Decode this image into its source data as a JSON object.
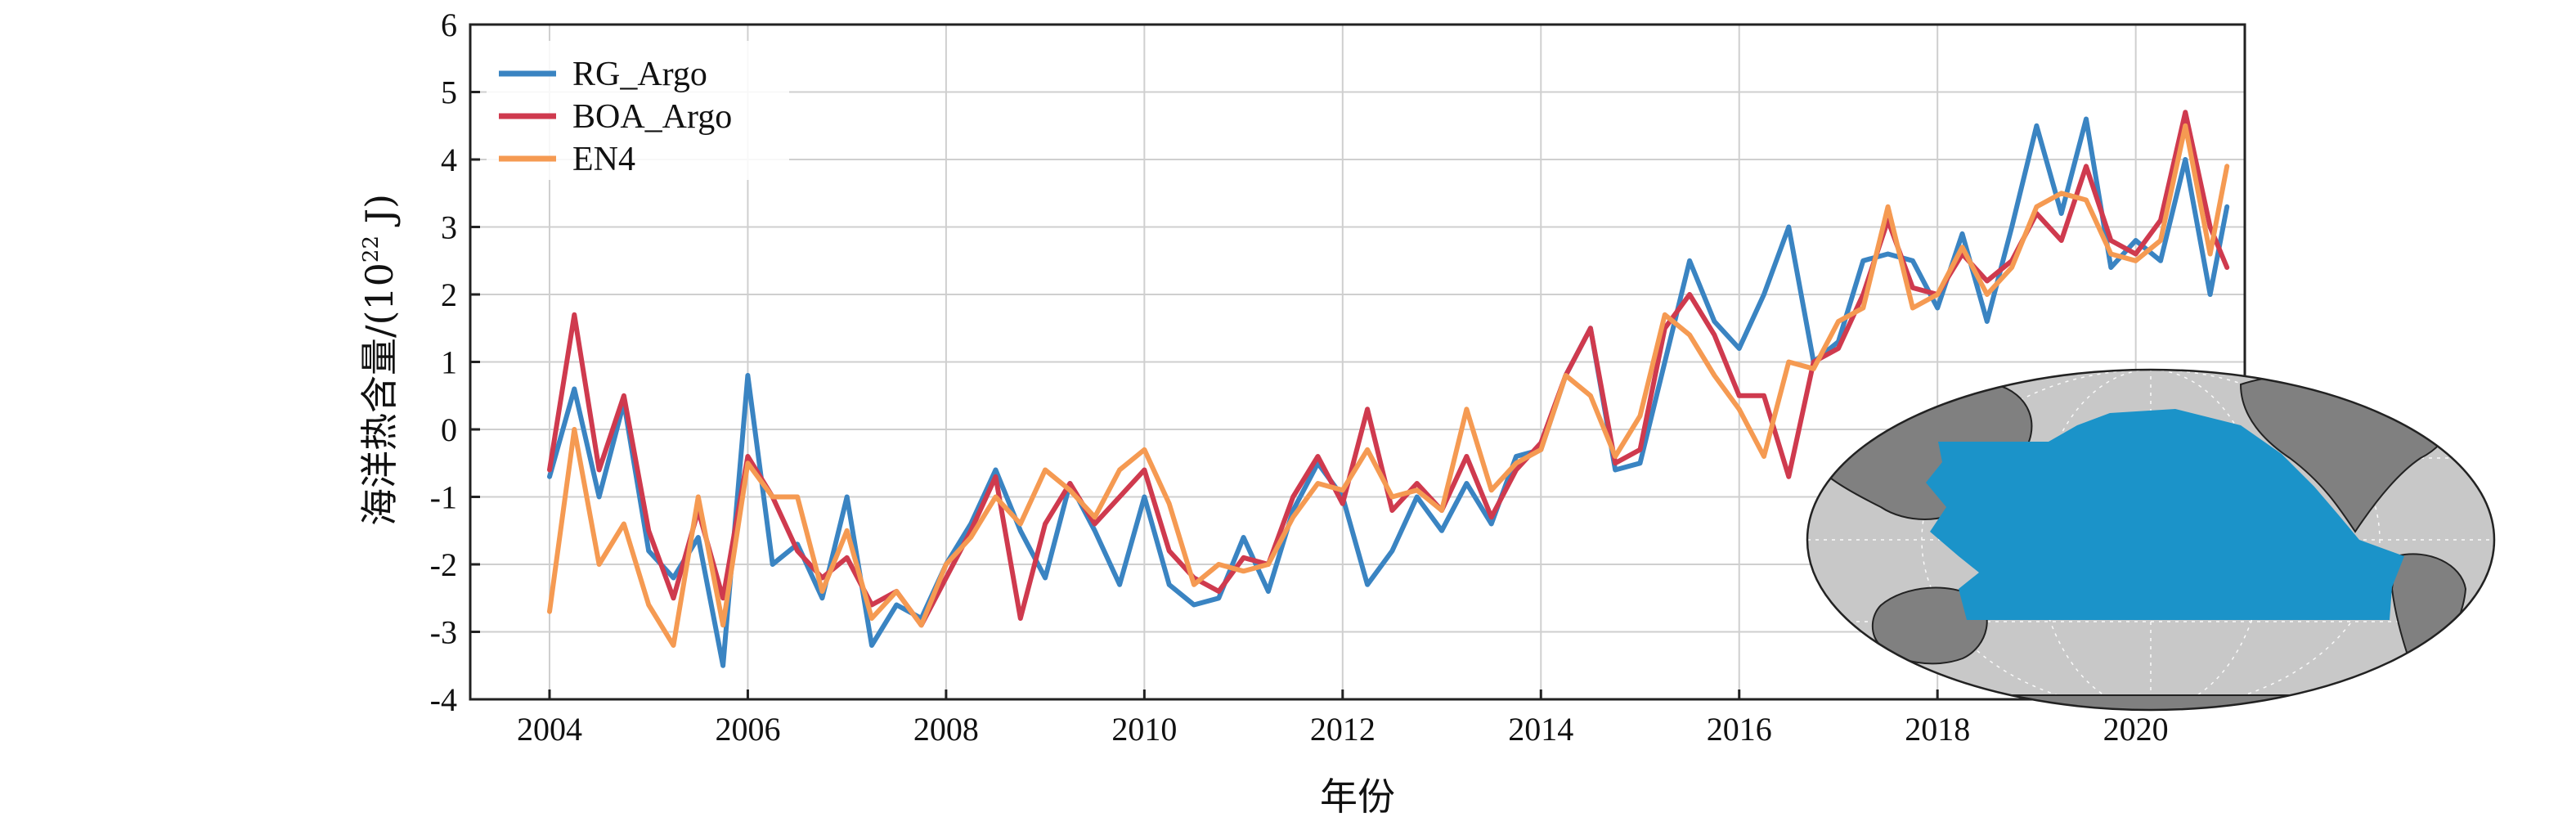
{
  "chart_data": {
    "type": "line",
    "xlabel": "年份",
    "ylabel": "海洋热含量/(10²² J)",
    "ylabel_main": "海洋热含量/(10",
    "ylabel_sup": "22",
    "ylabel_tail": " J)",
    "xlim": [
      2003.2,
      2021.1
    ],
    "ylim": [
      -4,
      6
    ],
    "x_ticks": [
      2004,
      2006,
      2008,
      2010,
      2012,
      2014,
      2016,
      2018,
      2020
    ],
    "y_ticks": [
      -4,
      -3,
      -2,
      -1,
      0,
      1,
      2,
      3,
      4,
      5,
      6
    ],
    "grid": true,
    "legend_position": "top-left",
    "x": [
      2004.0,
      2004.25,
      2004.5,
      2004.75,
      2005.0,
      2005.25,
      2005.5,
      2005.75,
      2006.0,
      2006.25,
      2006.5,
      2006.75,
      2007.0,
      2007.25,
      2007.5,
      2007.75,
      2008.0,
      2008.25,
      2008.5,
      2008.75,
      2009.0,
      2009.25,
      2009.5,
      2009.75,
      2010.0,
      2010.25,
      2010.5,
      2010.75,
      2011.0,
      2011.25,
      2011.5,
      2011.75,
      2012.0,
      2012.25,
      2012.5,
      2012.75,
      2013.0,
      2013.25,
      2013.5,
      2013.75,
      2014.0,
      2014.25,
      2014.5,
      2014.75,
      2015.0,
      2015.25,
      2015.5,
      2015.75,
      2016.0,
      2016.25,
      2016.5,
      2016.75,
      2017.0,
      2017.25,
      2017.5,
      2017.75,
      2018.0,
      2018.25,
      2018.5,
      2018.75,
      2019.0,
      2019.25,
      2019.5,
      2019.75,
      2020.0,
      2020.25,
      2020.5,
      2020.75,
      2020.92
    ],
    "series": [
      {
        "name": "RG_Argo",
        "color": "#3a84c2",
        "values": [
          -0.7,
          0.6,
          -1.0,
          0.4,
          -1.8,
          -2.2,
          -1.6,
          -3.5,
          0.8,
          -2.0,
          -1.7,
          -2.5,
          -1.0,
          -3.2,
          -2.6,
          -2.8,
          -2.0,
          -1.4,
          -0.6,
          -1.5,
          -2.2,
          -0.8,
          -1.5,
          -2.3,
          -1.0,
          -2.3,
          -2.6,
          -2.5,
          -1.6,
          -2.4,
          -1.2,
          -0.5,
          -1.0,
          -2.3,
          -1.8,
          -1.0,
          -1.5,
          -0.8,
          -1.4,
          -0.4,
          -0.3,
          0.8,
          1.5,
          -0.6,
          -0.5,
          1.0,
          2.5,
          1.6,
          1.2,
          2.0,
          3.0,
          1.0,
          1.3,
          2.5,
          2.6,
          2.5,
          1.8,
          2.9,
          1.6,
          3.0,
          4.5,
          3.2,
          4.6,
          2.4,
          2.8,
          2.5,
          4.0,
          2.0,
          3.3
        ]
      },
      {
        "name": "BOA_Argo",
        "color": "#cf3a4e",
        "values": [
          -0.6,
          1.7,
          -0.6,
          0.5,
          -1.5,
          -2.5,
          -1.2,
          -2.5,
          -0.4,
          -1.0,
          -1.8,
          -2.2,
          -1.9,
          -2.6,
          -2.4,
          -2.9,
          -2.2,
          -1.5,
          -0.7,
          -2.8,
          -1.4,
          -0.8,
          -1.4,
          -1.0,
          -0.6,
          -1.8,
          -2.2,
          -2.4,
          -1.9,
          -2.0,
          -1.0,
          -0.4,
          -1.1,
          0.3,
          -1.2,
          -0.8,
          -1.2,
          -0.4,
          -1.3,
          -0.6,
          -0.2,
          0.8,
          1.5,
          -0.5,
          -0.3,
          1.5,
          2.0,
          1.4,
          0.5,
          0.5,
          -0.7,
          1.0,
          1.2,
          2.0,
          3.1,
          2.1,
          2.0,
          2.6,
          2.2,
          2.5,
          3.2,
          2.8,
          3.9,
          2.8,
          2.6,
          3.1,
          4.7,
          3.0,
          2.4
        ]
      },
      {
        "name": "EN4",
        "color": "#f59a52",
        "values": [
          -2.7,
          0.0,
          -2.0,
          -1.4,
          -2.6,
          -3.2,
          -1.0,
          -2.9,
          -0.5,
          -1.0,
          -1.0,
          -2.4,
          -1.5,
          -2.8,
          -2.4,
          -2.9,
          -2.0,
          -1.6,
          -1.0,
          -1.4,
          -0.6,
          -0.9,
          -1.3,
          -0.6,
          -0.3,
          -1.1,
          -2.3,
          -2.0,
          -2.1,
          -2.0,
          -1.3,
          -0.8,
          -0.9,
          -0.3,
          -1.0,
          -0.9,
          -1.2,
          0.3,
          -0.9,
          -0.5,
          -0.3,
          0.8,
          0.5,
          -0.4,
          0.2,
          1.7,
          1.4,
          0.8,
          0.3,
          -0.4,
          1.0,
          0.9,
          1.6,
          1.8,
          3.3,
          1.8,
          2.0,
          2.7,
          2.0,
          2.4,
          3.3,
          3.5,
          3.4,
          2.6,
          2.5,
          2.8,
          4.5,
          2.6,
          3.9
        ]
      }
    ]
  },
  "inset_map": {
    "caption": "",
    "ocean_color": "#c8c8c8",
    "land_color": "#808080",
    "region_color": "#1b93c9"
  }
}
